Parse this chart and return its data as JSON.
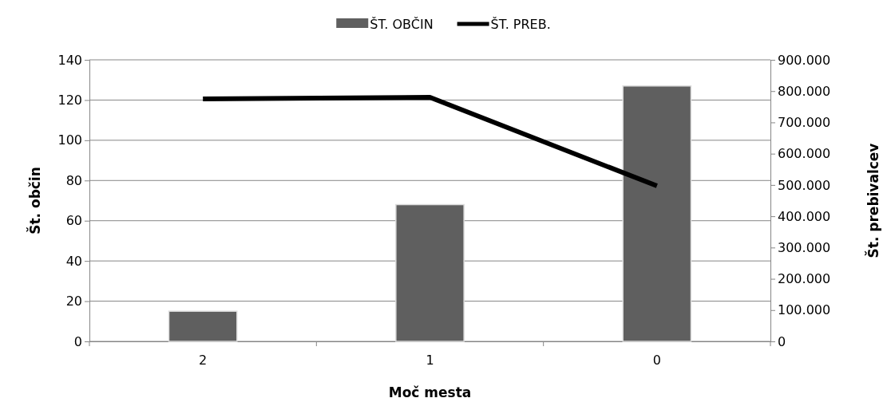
{
  "chart_data": {
    "type": "bar",
    "xlabel": "Moč mesta",
    "ylabel": "Št. občin",
    "y2label": "Št. prebivalcev",
    "categories": [
      "2",
      "1",
      "0"
    ],
    "series": [
      {
        "name": "ŠT. OBČIN",
        "type": "bar",
        "color": "#5f5f5f",
        "values": [
          15,
          68,
          127
        ]
      },
      {
        "name": "ŠT. PREB.",
        "type": "line",
        "axis": "y2",
        "color": "#000000",
        "values": [
          775000,
          780000,
          497000
        ]
      }
    ],
    "ylim": [
      0,
      140
    ],
    "yticks": [
      0,
      20,
      40,
      60,
      80,
      100,
      120,
      140
    ],
    "y2lim": [
      0,
      900000
    ],
    "y2ticks": [
      0,
      {
        "value": 100000,
        "label": "100.000"
      },
      {
        "value": 200000,
        "label": "200.000"
      },
      {
        "value": 300000,
        "label": "300.000"
      },
      {
        "value": 400000,
        "label": "400.000"
      },
      {
        "value": 500000,
        "label": "500.000"
      },
      {
        "value": 600000,
        "label": "600.000"
      },
      {
        "value": 700000,
        "label": "700.000"
      },
      {
        "value": 800000,
        "label": "800.000"
      },
      {
        "value": 900000,
        "label": "900.000"
      }
    ],
    "grid": "y",
    "legend": "top",
    "marker": "none",
    "line_style": "solid"
  }
}
